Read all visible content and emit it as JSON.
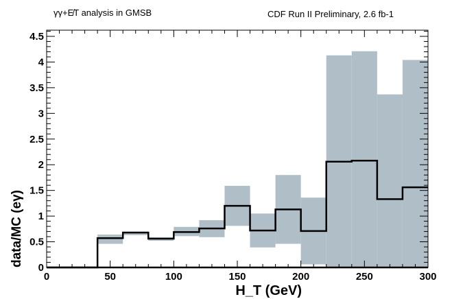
{
  "chart_data": {
    "type": "bar",
    "title_left": "γγ+E̸T analysis in GMSB",
    "title_left_parts": {
      "main": "γγ+E",
      "sub": "T",
      "rest": " analysis in GMSB"
    },
    "title_right": "CDF Run II Preliminary, 2.6 fb-1",
    "title_right_parts": {
      "main": "CDF Run II Preliminary, 2.6 fb",
      "sup": "-1"
    },
    "xlabel": "H_T (GeV)",
    "xlabel_parts": {
      "main": "H",
      "sub": "T",
      "rest": " (GeV)"
    },
    "ylabel": "data/MC (eγ)",
    "xlim": [
      0,
      300
    ],
    "ylim": [
      0,
      4.62
    ],
    "xticks": [
      "0",
      "50",
      "100",
      "150",
      "200",
      "250",
      "300"
    ],
    "yticks": [
      "0",
      "0.5",
      "1",
      "1.5",
      "2",
      "2.5",
      "3",
      "3.5",
      "4",
      "4.5"
    ],
    "bin_edges": [
      0,
      20,
      40,
      60,
      80,
      100,
      120,
      140,
      160,
      180,
      200,
      220,
      240,
      260,
      280,
      300
    ],
    "series": [
      {
        "name": "data/MC",
        "style": "step-line",
        "color": "#000000",
        "values": [
          0,
          0,
          0.57,
          0.68,
          0.56,
          0.69,
          0.76,
          1.2,
          0.72,
          1.13,
          0.71,
          2.06,
          2.08,
          1.33,
          1.56
        ]
      },
      {
        "name": "uncertainty band",
        "style": "band",
        "color": "#b0bec8",
        "low": [
          null,
          null,
          0.46,
          0.63,
          0.52,
          0.61,
          0.59,
          0.81,
          0.39,
          0.46,
          0.06,
          0,
          0,
          0,
          0
        ],
        "high": [
          null,
          null,
          0.64,
          0.7,
          0.59,
          0.79,
          0.92,
          1.59,
          1.05,
          1.8,
          1.36,
          4.13,
          4.21,
          3.37,
          4.04
        ]
      }
    ],
    "grid": false
  }
}
